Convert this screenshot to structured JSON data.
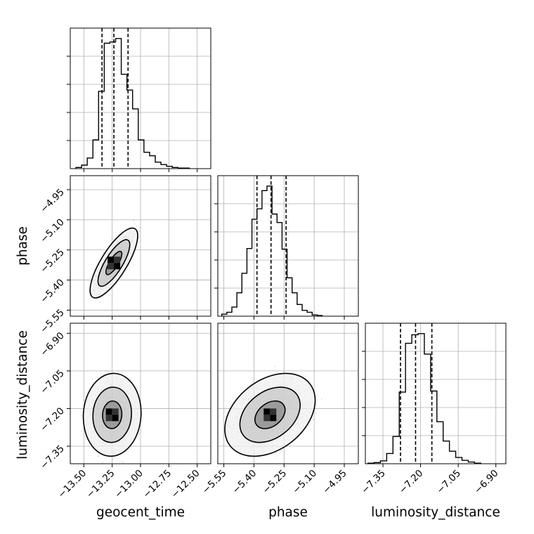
{
  "colors": {
    "line": "#000000",
    "grid": "#b0b0b0",
    "scatter": "#000000",
    "background": "#ffffff"
  },
  "chart_data": {
    "type": "corner",
    "grid": true,
    "parameters": [
      {
        "name": "geocent_time",
        "range": [
          -13.62,
          -12.38
        ],
        "ticks": [
          -13.5,
          -13.25,
          -13.0,
          -12.75,
          -12.5
        ],
        "tick_labels": [
          "−13.50",
          "−13.25",
          "−13.00",
          "−12.75",
          "−12.50"
        ],
        "quantiles": [
          -13.34,
          -13.235,
          -13.11
        ],
        "hist_edges": [
          -13.57,
          -13.52,
          -13.47,
          -13.42,
          -13.37,
          -13.32,
          -13.27,
          -13.22,
          -13.17,
          -13.12,
          -13.07,
          -13.02,
          -12.97,
          -12.92,
          -12.87,
          -12.82,
          -12.77,
          -12.72,
          -12.67,
          -12.62,
          -12.57
        ],
        "hist_counts": [
          2,
          6,
          18,
          49,
          132,
          214,
          216,
          222,
          161,
          134,
          102,
          49,
          28,
          22,
          11,
          7,
          4,
          2,
          1,
          1
        ]
      },
      {
        "name": "phase",
        "range": [
          -5.58,
          -4.88
        ],
        "ticks": [
          -5.55,
          -5.4,
          -5.25,
          -5.1,
          -4.95
        ],
        "tick_labels": [
          "−5.55",
          "−5.40",
          "−5.25",
          "−5.10",
          "−4.95"
        ],
        "quantiles": [
          -5.385,
          -5.315,
          -5.24
        ],
        "hist_edges": [
          -5.56,
          -5.535,
          -5.51,
          -5.485,
          -5.46,
          -5.435,
          -5.41,
          -5.385,
          -5.36,
          -5.335,
          -5.31,
          -5.285,
          -5.26,
          -5.235,
          -5.21,
          -5.185,
          -5.16,
          -5.135,
          -5.11,
          -5.085,
          -5.06
        ],
        "hist_counts": [
          3,
          6,
          14,
          36,
          66,
          104,
          149,
          165,
          193,
          200,
          157,
          144,
          103,
          59,
          36,
          18,
          9,
          6,
          2,
          1
        ]
      },
      {
        "name": "luminosity_distance",
        "range": [
          -7.42,
          -6.86
        ],
        "ticks": [
          -7.35,
          -7.2,
          -7.05,
          -6.9
        ],
        "tick_labels": [
          "−7.35",
          "−7.20",
          "−7.05",
          "−6.90"
        ],
        "quantiles": [
          -7.28,
          -7.22,
          -7.155
        ],
        "hist_edges": [
          -7.41,
          -7.385,
          -7.36,
          -7.335,
          -7.31,
          -7.285,
          -7.26,
          -7.235,
          -7.21,
          -7.185,
          -7.16,
          -7.135,
          -7.11,
          -7.085,
          -7.06,
          -7.035,
          -7.01,
          -6.985,
          -6.96
        ],
        "hist_counts": [
          1,
          2,
          5,
          18,
          48,
          126,
          212,
          227,
          229,
          193,
          128,
          74,
          40,
          22,
          11,
          6,
          3,
          1
        ]
      }
    ],
    "pairs": [
      {
        "x_param": 0,
        "y_param": 1,
        "center": [
          -13.235,
          -5.315
        ],
        "sd": [
          0.07,
          0.058
        ],
        "corr": 0.78,
        "contour_levels": [
          1,
          2,
          3
        ],
        "sample_count": 2000
      },
      {
        "x_param": 0,
        "y_param": 2,
        "center": [
          -13.25,
          -7.225
        ],
        "sd": [
          0.085,
          0.055
        ],
        "corr": 0.05,
        "contour_levels": [
          1,
          2,
          3
        ],
        "sample_count": 2000
      },
      {
        "x_param": 1,
        "y_param": 2,
        "center": [
          -5.32,
          -7.225
        ],
        "sd": [
          0.075,
          0.055
        ],
        "corr": 0.35,
        "contour_levels": [
          1,
          2,
          3
        ],
        "sample_count": 2000
      }
    ]
  }
}
